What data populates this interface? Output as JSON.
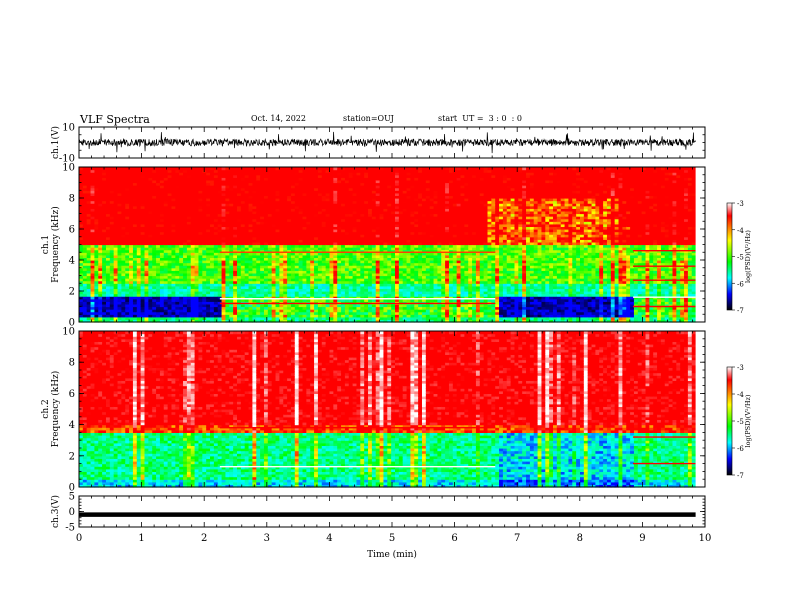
{
  "header": {
    "title": "VLF Spectra",
    "date": "Oct. 14, 2022",
    "station": "station=OUJ",
    "start_ut": "start  UT =  3 : 0  : 0"
  },
  "colorbar": {
    "label": "log(PSD)(V²/Hz)",
    "ticks": [
      -3,
      -4,
      -5,
      -6,
      -7
    ],
    "colors": [
      "#ffffff",
      "#ff0000",
      "#ffff00",
      "#00ff00",
      "#00ffff",
      "#0000ff",
      "#000000"
    ]
  },
  "chart_data": [
    {
      "type": "line",
      "panel": "ch1_waveform",
      "ylabel": "ch.1(V)",
      "ylim": [
        -10,
        10
      ],
      "yticks": [
        10,
        -10
      ],
      "x_range_min": [
        0,
        9.85
      ],
      "description_of_signal": "broadband noisy waveform, amplitude mostly within ±3 V"
    },
    {
      "type": "heatmap",
      "panel": "ch1_spectrogram",
      "ylabel": "ch.1\nFrequency (kHz)",
      "ylim": [
        0,
        10
      ],
      "yticks": [
        0,
        2,
        4,
        6,
        8,
        10
      ],
      "xlim": [
        0,
        10
      ],
      "clim": [
        -7,
        -3
      ],
      "bands": [
        {
          "f_range": [
            5,
            10
          ],
          "level": -3.6
        },
        {
          "f_range": [
            2.5,
            5
          ],
          "level": -4.8
        },
        {
          "f_range": [
            2,
            2.5
          ],
          "level": -5.4
        },
        {
          "f_range": [
            0.3,
            1.6
          ],
          "level": -6.6
        },
        {
          "f_range": [
            0,
            0.3
          ],
          "level": -5.2
        }
      ],
      "segments_minutes": [
        {
          "t": [
            0,
            2.25
          ],
          "note": "low band dark blue"
        },
        {
          "t": [
            2.25,
            3.2
          ],
          "note": "line emissions ~1.5 and ~4.5 kHz"
        },
        {
          "t": [
            3.2,
            6.65
          ],
          "note": "line emissions ~1.5 and ~4.5 kHz"
        },
        {
          "t": [
            6.65,
            8.85
          ],
          "note": "low band dark blue"
        },
        {
          "t": [
            8.85,
            9.85
          ],
          "note": "multiple line emissions 1-5 kHz"
        }
      ]
    },
    {
      "type": "heatmap",
      "panel": "ch2_spectrogram",
      "ylabel": "ch.2\nFrequency (kHz)",
      "ylim": [
        0,
        10
      ],
      "yticks": [
        0,
        2,
        4,
        6,
        8,
        10
      ],
      "xlim": [
        0,
        10
      ],
      "clim": [
        -7,
        -3
      ],
      "bands": [
        {
          "f_range": [
            4,
            10
          ],
          "level": -3.3
        },
        {
          "f_range": [
            3.5,
            4
          ],
          "level": -4.0
        },
        {
          "f_range": [
            0.5,
            3.5
          ],
          "level": -5.2
        },
        {
          "f_range": [
            0,
            0.5
          ],
          "level": -5.6
        }
      ]
    },
    {
      "type": "line",
      "panel": "ch3_waveform",
      "ylabel": "ch.3(V)",
      "ylim": [
        -5,
        5
      ],
      "yticks": [
        5,
        0,
        -5
      ],
      "constant_value": -1,
      "x_range_min": [
        0,
        9.85
      ]
    }
  ],
  "xaxis": {
    "label": "Time (min)",
    "xlim": [
      0,
      10
    ],
    "ticks": [
      0,
      1,
      2,
      3,
      4,
      5,
      6,
      7,
      8,
      9,
      10
    ]
  }
}
